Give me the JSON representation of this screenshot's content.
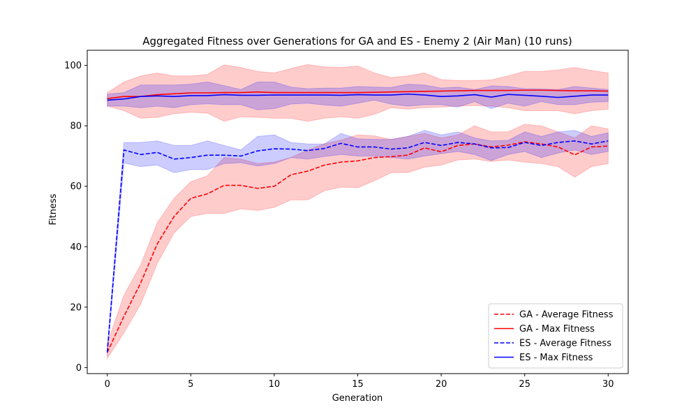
{
  "chart_data": {
    "type": "line",
    "title": "Aggregated Fitness over Generations for GA and ES - Enemy 2 (Air Man) (10 runs)",
    "xlabel": "Generation",
    "ylabel": "Fitness",
    "xlim": [
      -1.2,
      31.2
    ],
    "ylim": [
      -2,
      105
    ],
    "xticks": [
      0,
      5,
      10,
      15,
      20,
      25,
      30
    ],
    "yticks": [
      0,
      20,
      40,
      60,
      80,
      100
    ],
    "grid": false,
    "legend_position": "lower-right",
    "x": [
      0,
      1,
      2,
      3,
      4,
      5,
      6,
      7,
      8,
      9,
      10,
      11,
      12,
      13,
      14,
      15,
      16,
      17,
      18,
      19,
      20,
      21,
      22,
      23,
      24,
      25,
      26,
      27,
      28,
      29,
      30
    ],
    "series": [
      {
        "name": "GA - Average Fitness",
        "color": "#ff0000",
        "style": "dashed",
        "values": [
          5,
          17,
          28,
          41,
          50,
          56,
          57.5,
          60.3,
          60.3,
          59.3,
          60,
          63.8,
          65,
          67,
          68,
          68.4,
          69.5,
          69.8,
          70.3,
          72.7,
          71.4,
          73.5,
          74,
          73,
          73.6,
          74.7,
          74,
          73,
          70.4,
          73,
          73.3
        ],
        "band_low": [
          3,
          11.5,
          21,
          34.5,
          44.5,
          50,
          51,
          51,
          52.5,
          52,
          53,
          55.5,
          55.5,
          58.5,
          59.7,
          59.5,
          61.8,
          64.5,
          64.5,
          66.3,
          67,
          68.7,
          69,
          68.2,
          68.7,
          68,
          67.5,
          66.5,
          63,
          66.5,
          67.5
        ],
        "band_high": [
          8,
          24,
          34,
          48,
          56,
          61.5,
          63.5,
          69.5,
          69,
          67.5,
          68,
          69.5,
          72,
          74,
          75.3,
          77,
          76.7,
          75.5,
          76.5,
          77.5,
          76,
          77,
          80,
          78,
          78,
          80.5,
          80,
          78,
          76,
          80,
          79
        ]
      },
      {
        "name": "GA - Max Fitness",
        "color": "#ff0000",
        "style": "solid",
        "values": [
          89,
          89.7,
          89.7,
          90.3,
          90.6,
          90.9,
          90.9,
          91,
          91,
          91.2,
          91,
          91,
          91,
          91,
          91,
          91,
          91.1,
          91.2,
          91.3,
          91.4,
          91.5,
          91.6,
          91.7,
          91.7,
          91.7,
          91.8,
          91.8,
          91.7,
          91.6,
          91.6,
          91.5
        ],
        "band_low": [
          86.5,
          85,
          82.5,
          82.8,
          84,
          84.5,
          84.2,
          81.5,
          83,
          82.8,
          82.5,
          82.5,
          81.5,
          82.5,
          83,
          82.5,
          83.8,
          86,
          85.5,
          86,
          86.2,
          86.5,
          86.7,
          86.5,
          86,
          85,
          85,
          85,
          84,
          85,
          85.5
        ],
        "band_high": [
          91,
          94.5,
          96.5,
          97.5,
          96.5,
          96.5,
          97,
          100.2,
          99.3,
          98,
          97.5,
          99,
          100.3,
          99.5,
          99.3,
          99.8,
          97.5,
          96,
          96.5,
          97.5,
          95.3,
          95,
          95,
          95.2,
          96.5,
          98,
          98,
          98.5,
          99.3,
          98.3,
          97.5
        ]
      },
      {
        "name": "ES - Average Fitness",
        "color": "#0000ff",
        "style": "dashed",
        "values": [
          5,
          72,
          70.5,
          71.2,
          69,
          69.5,
          70.3,
          70.3,
          70,
          71.7,
          72.4,
          72.3,
          71.8,
          72.5,
          74.2,
          73,
          73,
          72.3,
          72.7,
          74.5,
          73.5,
          74.5,
          74,
          72.7,
          72.8,
          74.5,
          73.5,
          74.5,
          75,
          74,
          75
        ],
        "band_low": [
          4,
          67.7,
          66.5,
          67,
          64.5,
          65.5,
          65.5,
          67.5,
          67.8,
          66.7,
          67.5,
          69.5,
          69,
          69.8,
          70.5,
          70,
          70,
          69.5,
          69,
          70,
          70.8,
          71.5,
          70.5,
          68.5,
          70.5,
          71.5,
          69.5,
          71,
          72,
          70.5,
          71.5
        ],
        "band_high": [
          7,
          74.5,
          74.5,
          75,
          73.5,
          73.5,
          75,
          73.5,
          72,
          76.5,
          77,
          74.5,
          74,
          74,
          77.5,
          75.7,
          75.5,
          75.5,
          76.5,
          78.5,
          77,
          78,
          76,
          75,
          75.2,
          78,
          76.5,
          78,
          78.5,
          76.5,
          77.7
        ]
      },
      {
        "name": "ES - Max Fitness",
        "color": "#0000ff",
        "style": "solid",
        "values": [
          88.5,
          88.9,
          89.7,
          89.9,
          89.7,
          90,
          90,
          90.3,
          90.1,
          90.1,
          90.2,
          90.2,
          90.2,
          90.2,
          90.1,
          90.3,
          90.2,
          90.2,
          90.5,
          90.2,
          89.7,
          89.9,
          90.3,
          89.5,
          90.4,
          90.1,
          89.8,
          89.4,
          89.8,
          90.2,
          90.2
        ],
        "band_low": [
          86.5,
          86.5,
          86,
          86.5,
          86,
          87,
          87.3,
          87,
          87,
          85.3,
          85.7,
          87.2,
          87.5,
          86.9,
          86.5,
          87.5,
          88.5,
          87.2,
          86.5,
          87,
          87,
          86.2,
          88,
          85.7,
          87.5,
          86.5,
          88,
          87,
          87,
          87.8,
          88
        ],
        "band_high": [
          90.5,
          91,
          93.5,
          93.5,
          93.5,
          93.8,
          94.5,
          93.3,
          92,
          94.5,
          94.5,
          92.8,
          92.3,
          92.5,
          92.5,
          93,
          92.8,
          92.7,
          93.8,
          93.5,
          92.5,
          92.8,
          92,
          93.2,
          93,
          92.3,
          92.2,
          92,
          93,
          92.5,
          92
        ]
      }
    ]
  }
}
